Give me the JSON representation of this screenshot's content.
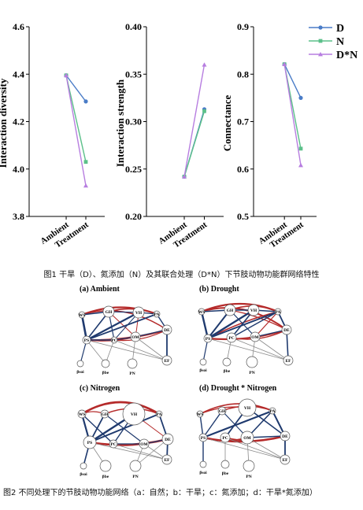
{
  "figure1": {
    "caption": "图1 干旱（D）、氮添加（N）及其联合处理（D*N）下节肢动物功能群网络特性",
    "categories": [
      "Ambient",
      "Treatment"
    ],
    "legend": [
      "D",
      "N",
      "D*N"
    ],
    "colors": {
      "D": "#4a7cc7",
      "N": "#5cc08a",
      "D*N": "#b77ee0"
    },
    "chart_data": [
      {
        "type": "line",
        "ylabel": "Interaction diversity",
        "ylim": [
          3.8,
          4.6
        ],
        "yticks": [
          "3.8",
          "4.0",
          "4.2",
          "4.4",
          "4.6"
        ],
        "categories": [
          "Ambient",
          "Treatment"
        ],
        "series": [
          {
            "name": "D",
            "values": [
              4.395,
              4.285
            ]
          },
          {
            "name": "N",
            "values": [
              4.395,
              4.03
            ]
          },
          {
            "name": "D*N",
            "values": [
              4.395,
              3.93
            ]
          }
        ]
      },
      {
        "type": "line",
        "ylabel": "Interaction strength",
        "ylim": [
          0.2,
          0.4
        ],
        "yticks": [
          "0.20",
          "0.25",
          "0.30",
          "0.35",
          "0.40"
        ],
        "categories": [
          "Ambient",
          "Treatment"
        ],
        "series": [
          {
            "name": "D",
            "values": [
              0.242,
              0.313
            ]
          },
          {
            "name": "N",
            "values": [
              0.242,
              0.311
            ]
          },
          {
            "name": "D*N",
            "values": [
              0.242,
              0.36
            ]
          }
        ]
      },
      {
        "type": "line",
        "ylabel": "Connectance",
        "ylim": [
          0.5,
          0.9
        ],
        "yticks": [
          "0.5",
          "0.6",
          "0.7",
          "0.8",
          "0.9"
        ],
        "categories": [
          "Ambient",
          "Treatment"
        ],
        "series": [
          {
            "name": "D",
            "values": [
              0.821,
              0.75
            ]
          },
          {
            "name": "N",
            "values": [
              0.821,
              0.643
            ]
          },
          {
            "name": "D*N",
            "values": [
              0.821,
              0.608
            ]
          }
        ]
      }
    ]
  },
  "figure2": {
    "caption": "图2 不同处理下的节肢动物功能网络（a：自然；b：干旱；c：氮添加；d：干旱*氮添加）",
    "panels": [
      {
        "title": "(a) Ambient",
        "nodes": [
          "WS",
          "GH",
          "VH",
          "PA",
          "DE",
          "PS",
          "PC",
          "OM",
          "EF",
          "βsoi",
          "βbe",
          "PN"
        ]
      },
      {
        "title": "(b) Drought",
        "nodes": [
          "WS",
          "GH",
          "VH",
          "PA",
          "DE",
          "PS",
          "PC",
          "OM",
          "EF",
          "βsoi",
          "βbe",
          "PN"
        ]
      },
      {
        "title": "(c) Nitrogen",
        "nodes": [
          "WS",
          "GH",
          "VH",
          "PA",
          "DE",
          "PS",
          "PC",
          "OM",
          "EF",
          "βsoi",
          "βbe",
          "PN"
        ]
      },
      {
        "title": "(d) Drought * Nitrogen",
        "nodes": [
          "WS",
          "GH",
          "VH",
          "PA",
          "DE",
          "PS",
          "PC",
          "OM",
          "EF",
          "βsoi",
          "βbe",
          "PN"
        ]
      }
    ]
  }
}
